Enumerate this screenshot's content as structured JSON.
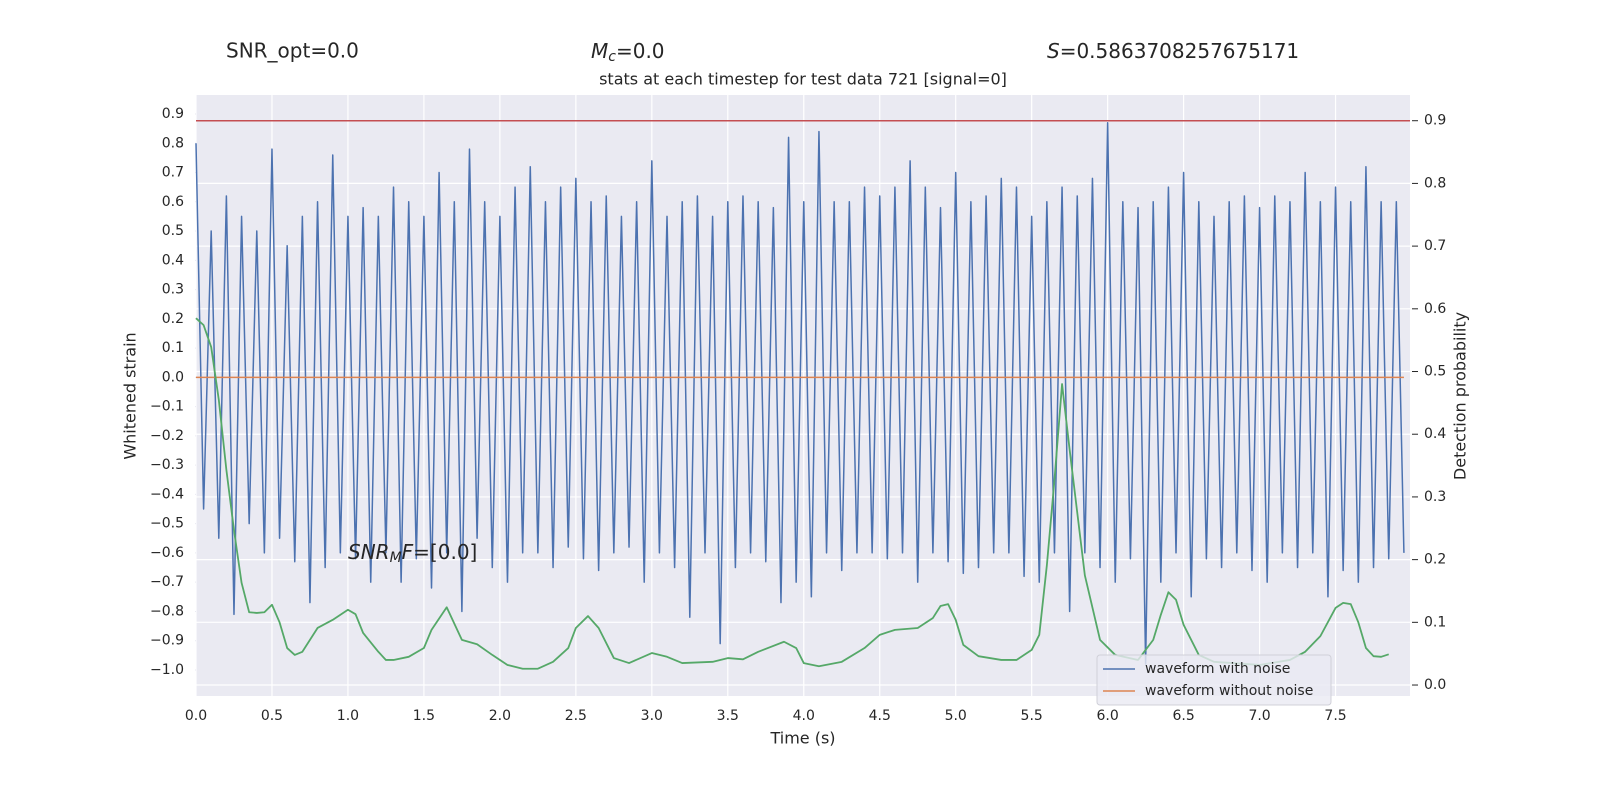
{
  "chart_data": {
    "type": "line",
    "title": "stats at each timestep for test data 721 [signal=0]",
    "xlabel": "Time (s)",
    "ylabel": "Whitened strain",
    "y2label": "Detection probability",
    "annotations": {
      "snr_opt": "SNR_opt=0.0",
      "mc": {
        "italic": "M",
        "sub": "c",
        "rest": "=0.0"
      },
      "s": {
        "italic": "S",
        "rest": "=0.5863708257675171"
      },
      "snr_mf": {
        "italic": "SNR",
        "sub": "M",
        "italic2": "F",
        "rest": "=[0.0]"
      }
    },
    "xlim": [
      0,
      7.99
    ],
    "xticks": [
      {
        "value": 0,
        "label": "0.0"
      },
      0.5,
      {
        "value": 1,
        "label": "1.0"
      },
      1.5,
      {
        "value": 2,
        "label": "2.0"
      },
      2.5,
      {
        "value": 3,
        "label": "3.0"
      },
      3.5,
      {
        "value": 4,
        "label": "4.0"
      },
      4.5,
      {
        "value": 5,
        "label": "5.0"
      },
      5.5,
      {
        "value": 6,
        "label": "6.0"
      },
      6.5,
      {
        "value": 7,
        "label": "7.0"
      },
      7.5
    ],
    "ylim": [
      -1.089,
      0.965
    ],
    "yticks": [
      0.9,
      0.8,
      0.7,
      0.6,
      0.5,
      0.4,
      0.3,
      0.2,
      0.1,
      {
        "value": 0,
        "label": "0.0"
      },
      {
        "value": -0.1,
        "label": "−0.1"
      },
      {
        "value": -0.2,
        "label": "−0.2"
      },
      {
        "value": -0.3,
        "label": "−0.3"
      },
      {
        "value": -0.4,
        "label": "−0.4"
      },
      {
        "value": -0.5,
        "label": "−0.5"
      },
      {
        "value": -0.6,
        "label": "−0.6"
      },
      {
        "value": -0.7,
        "label": "−0.7"
      },
      {
        "value": -0.8,
        "label": "−0.8"
      },
      {
        "value": -0.9,
        "label": "−0.9"
      },
      {
        "value": -1,
        "label": "−1.0"
      }
    ],
    "y2lim": [
      -0.0175,
      0.941
    ],
    "y2ticks": [
      {
        "value": 0,
        "label": "0.0"
      },
      0.1,
      0.2,
      0.3,
      0.4,
      0.5,
      0.6,
      0.7,
      0.8,
      0.9
    ],
    "grid": true,
    "legend": "lower right",
    "series": [
      {
        "name": "waveform with noise",
        "color": "#4c72b0",
        "x": [
          0,
          0.05,
          0.1,
          0.15,
          0.2,
          0.25,
          0.3,
          0.35,
          0.4,
          0.45,
          0.5,
          0.55,
          0.6,
          0.65,
          0.7,
          0.75,
          0.8,
          0.85,
          0.9,
          0.95,
          1,
          1.05,
          1.1,
          1.15,
          1.2,
          1.25,
          1.3,
          1.35,
          1.4,
          1.45,
          1.5,
          1.55,
          1.6,
          1.65,
          1.7,
          1.75,
          1.8,
          1.85,
          1.9,
          1.95,
          2,
          2.05,
          2.1,
          2.15,
          2.2,
          2.25,
          2.3,
          2.35,
          2.4,
          2.45,
          2.5,
          2.55,
          2.6,
          2.65,
          2.7,
          2.75,
          2.8,
          2.85,
          2.9,
          2.95,
          3,
          3.05,
          3.1,
          3.15,
          3.2,
          3.25,
          3.3,
          3.35,
          3.4,
          3.45,
          3.5,
          3.55,
          3.6,
          3.65,
          3.7,
          3.75,
          3.8,
          3.85,
          3.9,
          3.95,
          4,
          4.05,
          4.1,
          4.15,
          4.2,
          4.25,
          4.3,
          4.35,
          4.4,
          4.45,
          4.5,
          4.55,
          4.6,
          4.65,
          4.7,
          4.75,
          4.8,
          4.85,
          4.9,
          4.95,
          5,
          5.05,
          5.1,
          5.15,
          5.2,
          5.25,
          5.3,
          5.35,
          5.4,
          5.45,
          5.5,
          5.55,
          5.6,
          5.65,
          5.7,
          5.75,
          5.8,
          5.85,
          5.9,
          5.95,
          6,
          6.05,
          6.1,
          6.15,
          6.2,
          6.25,
          6.3,
          6.35,
          6.4,
          6.45,
          6.5,
          6.55,
          6.6,
          6.65,
          6.7,
          6.75,
          6.8,
          6.85,
          6.9,
          6.95,
          7,
          7.05,
          7.1,
          7.15,
          7.2,
          7.25,
          7.3,
          7.35,
          7.4,
          7.45,
          7.5,
          7.55,
          7.6,
          7.65,
          7.7,
          7.75,
          7.8,
          7.85,
          7.9,
          7.95
        ],
        "values": [
          0.8,
          -0.45,
          0.5,
          -0.55,
          0.62,
          -0.81,
          0.55,
          -0.5,
          0.5,
          -0.6,
          0.78,
          -0.55,
          0.45,
          -0.63,
          0.55,
          -0.77,
          0.6,
          -0.65,
          0.76,
          -0.6,
          0.55,
          -0.62,
          0.58,
          -0.7,
          0.55,
          -0.6,
          0.65,
          -0.7,
          0.6,
          -0.62,
          0.55,
          -0.72,
          0.7,
          -0.6,
          0.6,
          -0.8,
          0.78,
          -0.55,
          0.6,
          -0.65,
          0.55,
          -0.7,
          0.65,
          -0.6,
          0.72,
          -0.6,
          0.6,
          -0.65,
          0.65,
          -0.58,
          0.68,
          -0.62,
          0.6,
          -0.66,
          0.62,
          -0.6,
          0.55,
          -0.58,
          0.6,
          -0.7,
          0.74,
          -0.6,
          0.55,
          -0.65,
          0.6,
          -0.82,
          0.62,
          -0.6,
          0.55,
          -0.91,
          0.6,
          -0.65,
          0.62,
          -0.6,
          0.6,
          -0.63,
          0.58,
          -0.77,
          0.82,
          -0.7,
          0.6,
          -0.75,
          0.84,
          -0.6,
          0.6,
          -0.66,
          0.6,
          -0.6,
          0.65,
          -0.6,
          0.62,
          -0.62,
          0.65,
          -0.6,
          0.74,
          -0.7,
          0.65,
          -0.6,
          0.58,
          -0.63,
          0.7,
          -0.67,
          0.6,
          -0.65,
          0.62,
          -0.6,
          0.68,
          -0.6,
          0.65,
          -0.68,
          0.55,
          -0.7,
          0.6,
          -0.6,
          0.65,
          -0.8,
          0.62,
          -0.6,
          0.68,
          -0.65,
          0.87,
          -0.7,
          0.6,
          -0.62,
          0.58,
          -0.98,
          0.6,
          -0.7,
          0.65,
          -0.6,
          0.7,
          -0.75,
          0.6,
          -0.62,
          0.55,
          -0.65,
          0.6,
          -0.6,
          0.62,
          -0.66,
          0.58,
          -0.7,
          0.62,
          -0.6,
          0.6,
          -0.65,
          0.7,
          -0.6,
          0.6,
          -0.75,
          0.65,
          -0.66,
          0.6,
          -0.7,
          0.72,
          -0.65,
          0.6,
          -0.62,
          0.6,
          -0.6
        ]
      },
      {
        "name": "waveform without noise",
        "color": "#dd8452",
        "x": [
          0,
          7.95
        ],
        "values": [
          0,
          0
        ]
      }
    ],
    "detection_probability": {
      "color": "#55a868",
      "axis": "y2",
      "x": [
        0,
        0.05,
        0.1,
        0.15,
        0.2,
        0.25,
        0.3,
        0.35,
        0.4,
        0.45,
        0.5,
        0.55,
        0.6,
        0.65,
        0.7,
        0.8,
        0.9,
        1,
        1.05,
        1.1,
        1.2,
        1.25,
        1.3,
        1.4,
        1.5,
        1.55,
        1.65,
        1.75,
        1.85,
        1.95,
        2.05,
        2.15,
        2.25,
        2.35,
        2.45,
        2.5,
        2.58,
        2.65,
        2.75,
        2.85,
        3,
        3.1,
        3.2,
        3.4,
        3.5,
        3.6,
        3.7,
        3.87,
        3.95,
        4,
        4.1,
        4.25,
        4.4,
        4.5,
        4.6,
        4.75,
        4.85,
        4.9,
        4.95,
        5,
        5.05,
        5.15,
        5.3,
        5.4,
        5.5,
        5.55,
        5.6,
        5.65,
        5.7,
        5.75,
        5.85,
        5.95,
        6.05,
        6.2,
        6.3,
        6.35,
        6.4,
        6.45,
        6.5,
        6.6,
        6.7,
        7,
        7.2,
        7.3,
        7.4,
        7.5,
        7.55,
        7.6,
        7.65,
        7.7,
        7.75,
        7.8,
        7.85
      ],
      "values": [
        0.585,
        0.574,
        0.539,
        0.455,
        0.343,
        0.247,
        0.163,
        0.116,
        0.115,
        0.116,
        0.128,
        0.1,
        0.059,
        0.048,
        0.053,
        0.091,
        0.104,
        0.12,
        0.113,
        0.083,
        0.053,
        0.04,
        0.04,
        0.045,
        0.059,
        0.088,
        0.124,
        0.072,
        0.065,
        0.048,
        0.032,
        0.026,
        0.026,
        0.037,
        0.059,
        0.091,
        0.11,
        0.091,
        0.043,
        0.035,
        0.051,
        0.045,
        0.035,
        0.037,
        0.043,
        0.041,
        0.053,
        0.069,
        0.059,
        0.035,
        0.03,
        0.037,
        0.059,
        0.08,
        0.088,
        0.091,
        0.107,
        0.126,
        0.129,
        0.104,
        0.064,
        0.046,
        0.04,
        0.04,
        0.056,
        0.08,
        0.191,
        0.327,
        0.48,
        0.375,
        0.175,
        0.072,
        0.048,
        0.04,
        0.072,
        0.112,
        0.148,
        0.136,
        0.096,
        0.048,
        0.037,
        0.032,
        0.04,
        0.053,
        0.078,
        0.123,
        0.131,
        0.129,
        0.1,
        0.059,
        0.046,
        0.045,
        0.049
      ]
    },
    "threshold": {
      "value": 0.9,
      "color": "#c44e52",
      "axis": "y2"
    }
  }
}
